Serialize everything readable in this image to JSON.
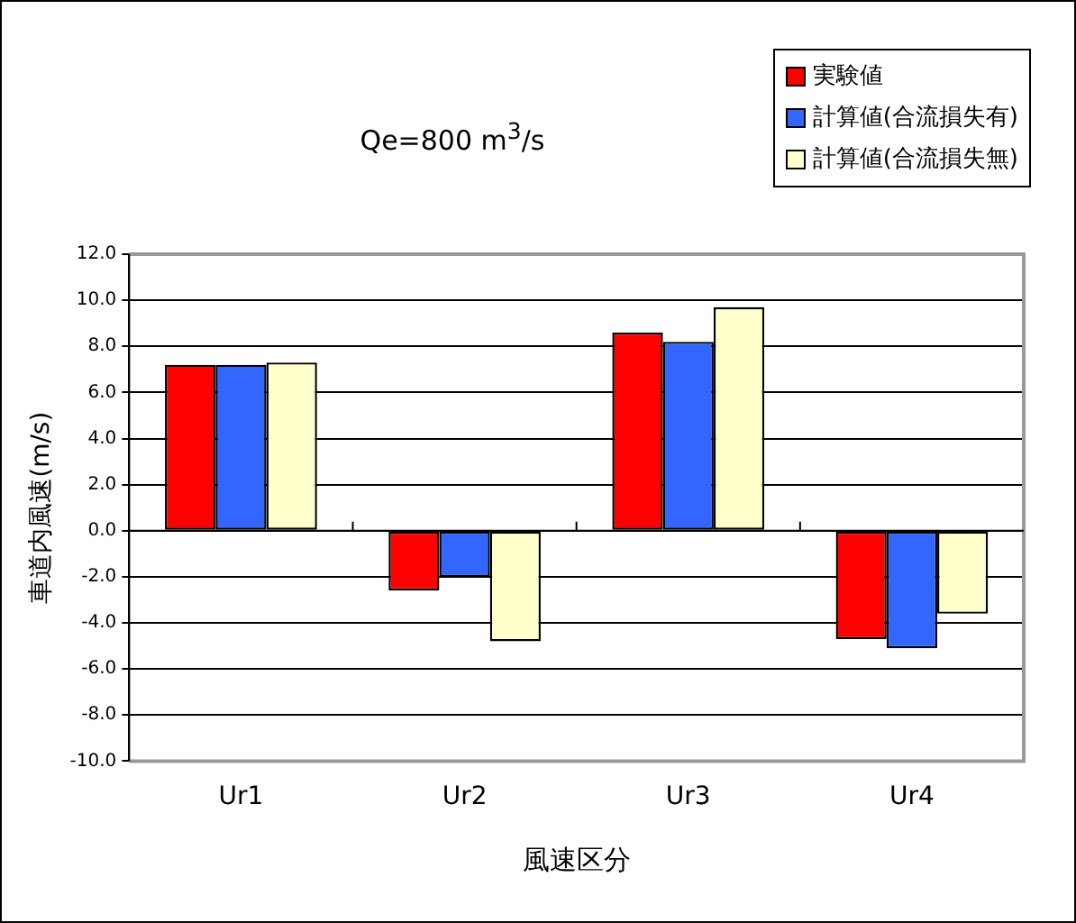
{
  "chart_data": {
    "type": "bar",
    "title": "Qe=800 m$^{3}$/s",
    "xlabel": "風速区分",
    "ylabel": "車道内風速(m/s)",
    "categories": [
      "Ur1",
      "Ur2",
      "Ur3",
      "Ur4"
    ],
    "series": [
      {
        "name": "実験値",
        "color": "#ff0000",
        "values": [
          7.2,
          -2.6,
          8.6,
          -4.7
        ]
      },
      {
        "name": "計算値(合流損失有)",
        "color": "#3366ff",
        "values": [
          7.2,
          -2.0,
          8.2,
          -5.1
        ]
      },
      {
        "name": "計算値(合流損失無)",
        "color": "#ffffcc",
        "values": [
          7.3,
          -4.8,
          9.7,
          -3.6
        ]
      }
    ],
    "ylim": [
      -10,
      12
    ],
    "yticks": [
      {
        "value": -10,
        "label": "-10.0"
      },
      {
        "value": -8,
        "label": "-8.0"
      },
      {
        "value": -6,
        "label": "-6.0"
      },
      {
        "value": -4,
        "label": "-4.0"
      },
      {
        "value": -2,
        "label": "-2.0"
      },
      {
        "value": 0,
        "label": "0.0"
      },
      {
        "value": 2,
        "label": "2.0"
      },
      {
        "value": 4,
        "label": "4.0"
      },
      {
        "value": 6,
        "label": "6.0"
      },
      {
        "value": 8,
        "label": "8.0"
      },
      {
        "value": 10,
        "label": "10.0"
      },
      {
        "value": 12,
        "label": "12.0"
      }
    ],
    "grid": "y",
    "legend": "top right"
  }
}
